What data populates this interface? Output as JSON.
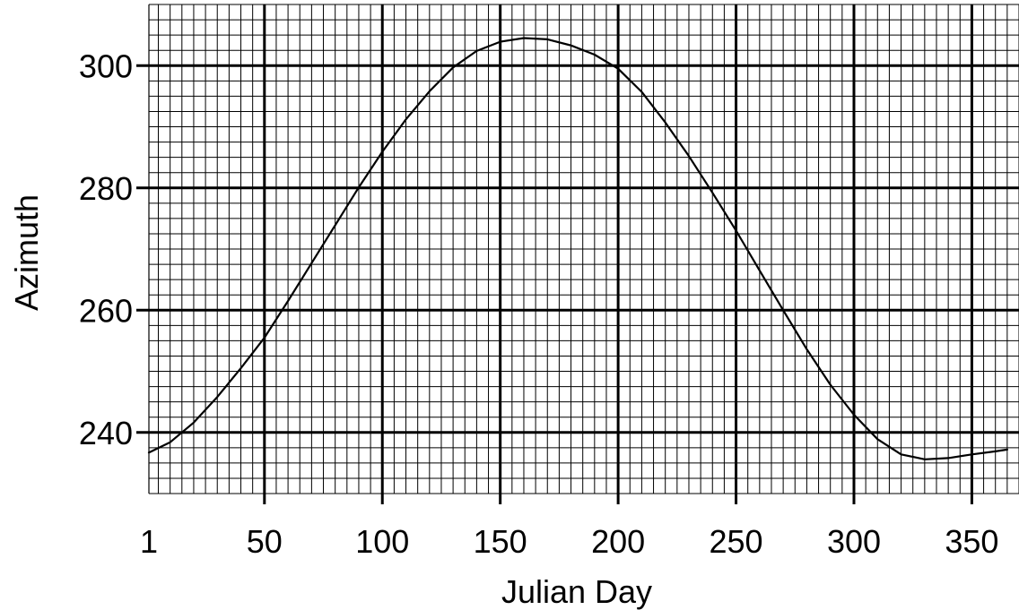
{
  "chart_data": {
    "type": "line",
    "title": "",
    "xlabel": "Julian Day",
    "ylabel": "Azimuth",
    "xlim": [
      1,
      370
    ],
    "ylim": [
      230,
      310
    ],
    "x_ticks": [
      1,
      50,
      100,
      150,
      200,
      250,
      300,
      350
    ],
    "y_ticks": [
      240,
      260,
      280,
      300
    ],
    "grid": true,
    "legend": "none",
    "line_color": "#000000",
    "series": [
      {
        "x": [
          1,
          10,
          20,
          30,
          40,
          50,
          60,
          70,
          80,
          90,
          100,
          110,
          120,
          130,
          140,
          150,
          160,
          170,
          180,
          190,
          200,
          210,
          220,
          230,
          240,
          250,
          260,
          270,
          280,
          290,
          300,
          310,
          320,
          330,
          340,
          350,
          360,
          365
        ],
        "values": [
          236.7,
          238.4,
          241.6,
          245.8,
          250.5,
          255.5,
          261.5,
          267.7,
          273.9,
          280.1,
          285.9,
          291.2,
          295.8,
          299.7,
          302.4,
          303.9,
          304.5,
          304.3,
          303.3,
          301.8,
          299.5,
          295.7,
          290.7,
          285.2,
          279.2,
          273.0,
          266.5,
          260.0,
          253.6,
          247.8,
          242.9,
          238.9,
          236.4,
          235.6,
          235.8,
          236.4,
          236.9,
          237.2
        ]
      }
    ]
  }
}
